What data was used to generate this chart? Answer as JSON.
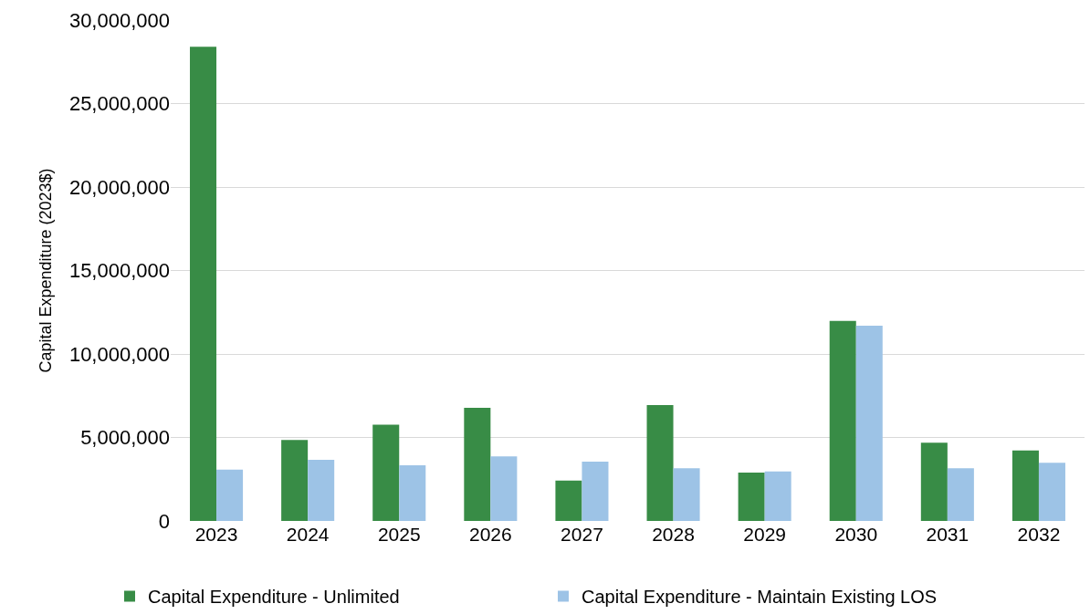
{
  "chart_data": {
    "type": "bar",
    "ylabel": "Capital Expenditure (2023$)",
    "categories": [
      "2023",
      "2024",
      "2025",
      "2026",
      "2027",
      "2028",
      "2029",
      "2030",
      "2031",
      "2032"
    ],
    "series": [
      {
        "name": "Capital Expenditure - Unlimited",
        "color": "#388c46",
        "values": [
          28400000,
          4850000,
          5770000,
          6780000,
          2420000,
          6940000,
          2890000,
          11980000,
          4680000,
          4220000
        ]
      },
      {
        "name": "Capital Expenditure - Maintain Existing LOS",
        "color": "#9dc3e6",
        "values": [
          3080000,
          3660000,
          3330000,
          3870000,
          3550000,
          3160000,
          2970000,
          11700000,
          3160000,
          3490000
        ]
      }
    ],
    "ylim": [
      0,
      30000000
    ],
    "yticks": [
      {
        "value": 0,
        "label": "0"
      },
      {
        "value": 5000000,
        "label": "5,000,000"
      },
      {
        "value": 10000000,
        "label": "10,000,000"
      },
      {
        "value": 15000000,
        "label": "15,000,000"
      },
      {
        "value": 20000000,
        "label": "20,000,000"
      },
      {
        "value": 25000000,
        "label": "25,000,000"
      },
      {
        "value": 30000000,
        "label": "30,000,000"
      }
    ],
    "grid": "y",
    "legend": "bottom"
  }
}
